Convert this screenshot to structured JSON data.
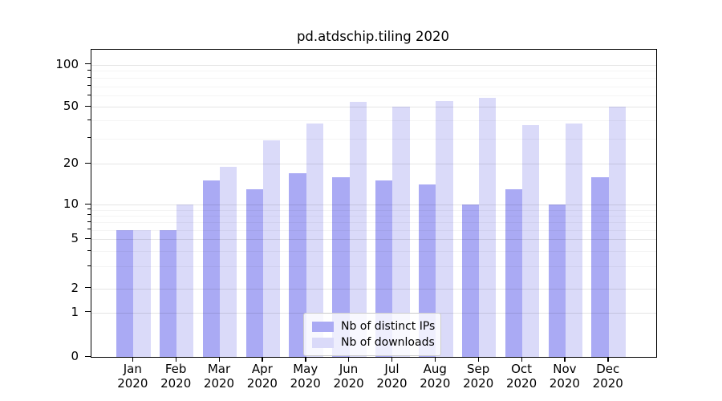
{
  "chart_data": {
    "type": "bar",
    "title": "pd.atdschip.tiling 2020",
    "categories": [
      "Jan 2020",
      "Feb 2020",
      "Mar 2020",
      "Apr 2020",
      "May 2020",
      "Jun 2020",
      "Jul 2020",
      "Aug 2020",
      "Sep 2020",
      "Oct 2020",
      "Nov 2020",
      "Dec 2020"
    ],
    "series": [
      {
        "name": "Nb of distinct IPs",
        "color": "#aaaaf4",
        "values": [
          6,
          6,
          15,
          13,
          17,
          16,
          15,
          14,
          10,
          13,
          10,
          16
        ]
      },
      {
        "name": "Nb of downloads",
        "color": "#dadaf9",
        "values": [
          6,
          10,
          19,
          29,
          38,
          54,
          50,
          55,
          58,
          37,
          38,
          50
        ]
      }
    ],
    "xlabel": "",
    "ylabel": "",
    "yscale": "symlog",
    "y_ticks": [
      0,
      1,
      2,
      5,
      10,
      20,
      50,
      100
    ],
    "y_minor_ticks": [
      3,
      4,
      6,
      7,
      8,
      9,
      30,
      40,
      60,
      70,
      80,
      90
    ],
    "ylim": [
      0,
      128
    ],
    "grid": true,
    "legend_position": "lower center",
    "colors": {
      "spine": "#000000",
      "background": "#ffffff"
    }
  }
}
